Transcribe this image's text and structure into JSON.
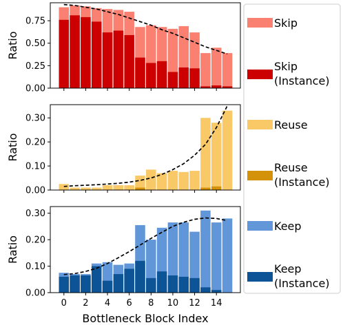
{
  "chart_data": [
    {
      "type": "bar",
      "panel": "top",
      "ylabel": "Ratio",
      "xlabel": "",
      "ylim": [
        0,
        0.95
      ],
      "yticks": [
        "0.00",
        "0.25",
        "0.50",
        "0.75"
      ],
      "ytick_values": [
        0,
        0.25,
        0.5,
        0.75
      ],
      "x": [
        0,
        1,
        2,
        3,
        4,
        5,
        6,
        7,
        8,
        9,
        10,
        11,
        12,
        13,
        14,
        15
      ],
      "series": [
        {
          "name": "Skip",
          "color": "#fa8072",
          "values": [
            0.9,
            0.92,
            0.91,
            0.89,
            0.88,
            0.87,
            0.85,
            0.68,
            0.7,
            0.68,
            0.66,
            0.69,
            0.62,
            0.39,
            0.45,
            0.39
          ]
        },
        {
          "name": "Skip (Instance)",
          "color": "#cc0000",
          "values": [
            0.76,
            0.81,
            0.79,
            0.74,
            0.62,
            0.64,
            0.59,
            0.34,
            0.28,
            0.3,
            0.18,
            0.23,
            0.22,
            0.02,
            0.03,
            0.02
          ]
        }
      ],
      "trend": [
        0.93,
        0.92,
        0.9,
        0.88,
        0.85,
        0.82,
        0.78,
        0.74,
        0.7,
        0.65,
        0.61,
        0.56,
        0.51,
        0.46,
        0.42,
        0.38
      ]
    },
    {
      "type": "bar",
      "panel": "middle",
      "ylabel": "Ratio",
      "xlabel": "",
      "ylim": [
        0,
        0.355
      ],
      "yticks": [
        "0.00",
        "0.10",
        "0.20",
        "0.30"
      ],
      "ytick_values": [
        0,
        0.1,
        0.2,
        0.3
      ],
      "x": [
        0,
        1,
        2,
        3,
        4,
        5,
        6,
        7,
        8,
        9,
        10,
        11,
        12,
        13,
        14,
        15
      ],
      "series": [
        {
          "name": "Reuse",
          "color": "#f9c968",
          "values": [
            0.025,
            0.01,
            0.01,
            0.01,
            0.02,
            0.02,
            0.02,
            0.06,
            0.085,
            0.07,
            0.08,
            0.075,
            0.08,
            0.3,
            0.28,
            0.33
          ]
        },
        {
          "name": "Reuse (Instance)",
          "color": "#d4920a",
          "values": [
            0.0,
            0.0,
            0.0,
            0.0,
            0.0,
            0.0,
            0.0,
            0.01,
            0.0,
            0.0,
            0.0,
            0.0,
            0.0,
            0.01,
            0.015,
            0.0
          ]
        }
      ],
      "trend": [
        0.015,
        0.018,
        0.02,
        0.022,
        0.025,
        0.028,
        0.033,
        0.04,
        0.05,
        0.065,
        0.085,
        0.11,
        0.145,
        0.19,
        0.26,
        0.35
      ]
    },
    {
      "type": "bar",
      "panel": "bottom",
      "ylabel": "Ratio",
      "xlabel": "Bottleneck Block Index",
      "ylim": [
        0,
        0.325
      ],
      "yticks": [
        "0.00",
        "0.10",
        "0.20",
        "0.30"
      ],
      "ytick_values": [
        0,
        0.1,
        0.2,
        0.3
      ],
      "xticks": [
        "0",
        "2",
        "4",
        "6",
        "8",
        "10",
        "12",
        "14"
      ],
      "xtick_values": [
        0,
        2,
        4,
        6,
        8,
        10,
        12,
        14
      ],
      "x": [
        0,
        1,
        2,
        3,
        4,
        5,
        6,
        7,
        8,
        9,
        10,
        11,
        12,
        13,
        14,
        15
      ],
      "series": [
        {
          "name": "Keep",
          "color": "#6197d8",
          "values": [
            0.075,
            0.07,
            0.07,
            0.11,
            0.115,
            0.105,
            0.11,
            0.255,
            0.2,
            0.245,
            0.265,
            0.265,
            0.23,
            0.31,
            0.265,
            0.28
          ]
        },
        {
          "name": "Keep (Instance)",
          "color": "#0d5496",
          "values": [
            0.06,
            0.065,
            0.065,
            0.1,
            0.045,
            0.07,
            0.09,
            0.12,
            0.055,
            0.08,
            0.065,
            0.06,
            0.055,
            0.02,
            0.01,
            0.0
          ]
        }
      ],
      "trend": [
        0.068,
        0.072,
        0.08,
        0.092,
        0.11,
        0.132,
        0.155,
        0.18,
        0.205,
        0.228,
        0.25,
        0.266,
        0.277,
        0.282,
        0.28,
        0.272
      ]
    }
  ],
  "legend": {
    "placement": "right",
    "entries": [
      {
        "label": "Skip",
        "label2": "",
        "color": "#fa8072"
      },
      {
        "label": "Skip",
        "label2": "(Instance)",
        "color": "#cc0000"
      },
      {
        "label": "Reuse",
        "label2": "",
        "color": "#f9c968"
      },
      {
        "label": "Reuse",
        "label2": "(Instance)",
        "color": "#d4920a"
      },
      {
        "label": "Keep",
        "label2": "",
        "color": "#6197d8"
      },
      {
        "label": "Keep",
        "label2": "(Instance)",
        "color": "#0d5496"
      }
    ]
  }
}
